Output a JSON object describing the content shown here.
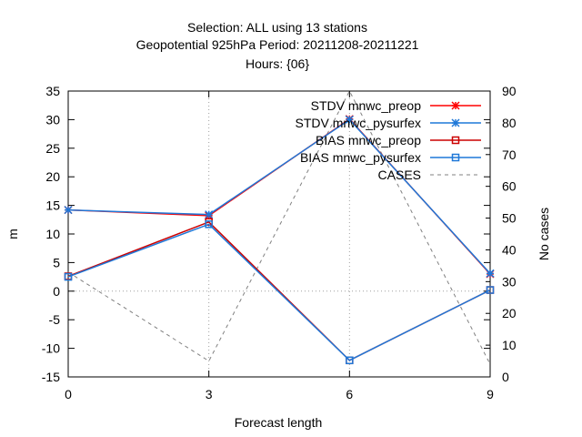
{
  "chart_data": {
    "type": "line",
    "title_lines": [
      "Selection: ALL using    13 stations",
      "Geopotential 925hPa   Period: 20211208-20211221",
      "Hours: {06}"
    ],
    "xlabel": "Forecast length",
    "ylabel": "m",
    "y2label": "No cases",
    "x": [
      0,
      3,
      6,
      9
    ],
    "xticks": [
      "0",
      "3",
      "6",
      "9"
    ],
    "xlim": [
      0,
      9
    ],
    "ylim": [
      -15,
      35
    ],
    "yticks": [
      "35",
      "30",
      "25",
      "20",
      "15",
      "10",
      "5",
      "0",
      "-5",
      "-10",
      "-15"
    ],
    "y2lim": [
      0,
      90
    ],
    "y2ticks": [
      "90",
      "80",
      "70",
      "60",
      "50",
      "40",
      "30",
      "20",
      "10",
      "0"
    ],
    "grid": true,
    "legend_position": "top-right",
    "series": [
      {
        "name": "STDV mnwc_preop",
        "axis": "left",
        "color": "#ff0000",
        "marker": "star",
        "dash": "",
        "values": [
          14.2,
          13.2,
          30.1,
          3.0
        ]
      },
      {
        "name": "STDV mnwc_pysurfex",
        "axis": "left",
        "color": "#1f78d8",
        "marker": "star",
        "dash": "",
        "values": [
          14.2,
          13.4,
          30.0,
          3.1
        ]
      },
      {
        "name": "BIAS mnwc_preop",
        "axis": "left",
        "color": "#cc0000",
        "marker": "square",
        "dash": "",
        "values": [
          2.6,
          12.1,
          -12.1,
          0.2
        ]
      },
      {
        "name": "BIAS mnwc_pysurfex",
        "axis": "left",
        "color": "#1f78d8",
        "marker": "square",
        "dash": "",
        "values": [
          2.5,
          11.7,
          -12.1,
          0.2
        ]
      },
      {
        "name": "CASES",
        "axis": "right",
        "color": "#808080",
        "marker": "none",
        "dash": "4,4",
        "values": [
          33,
          5,
          90,
          4
        ]
      }
    ]
  }
}
